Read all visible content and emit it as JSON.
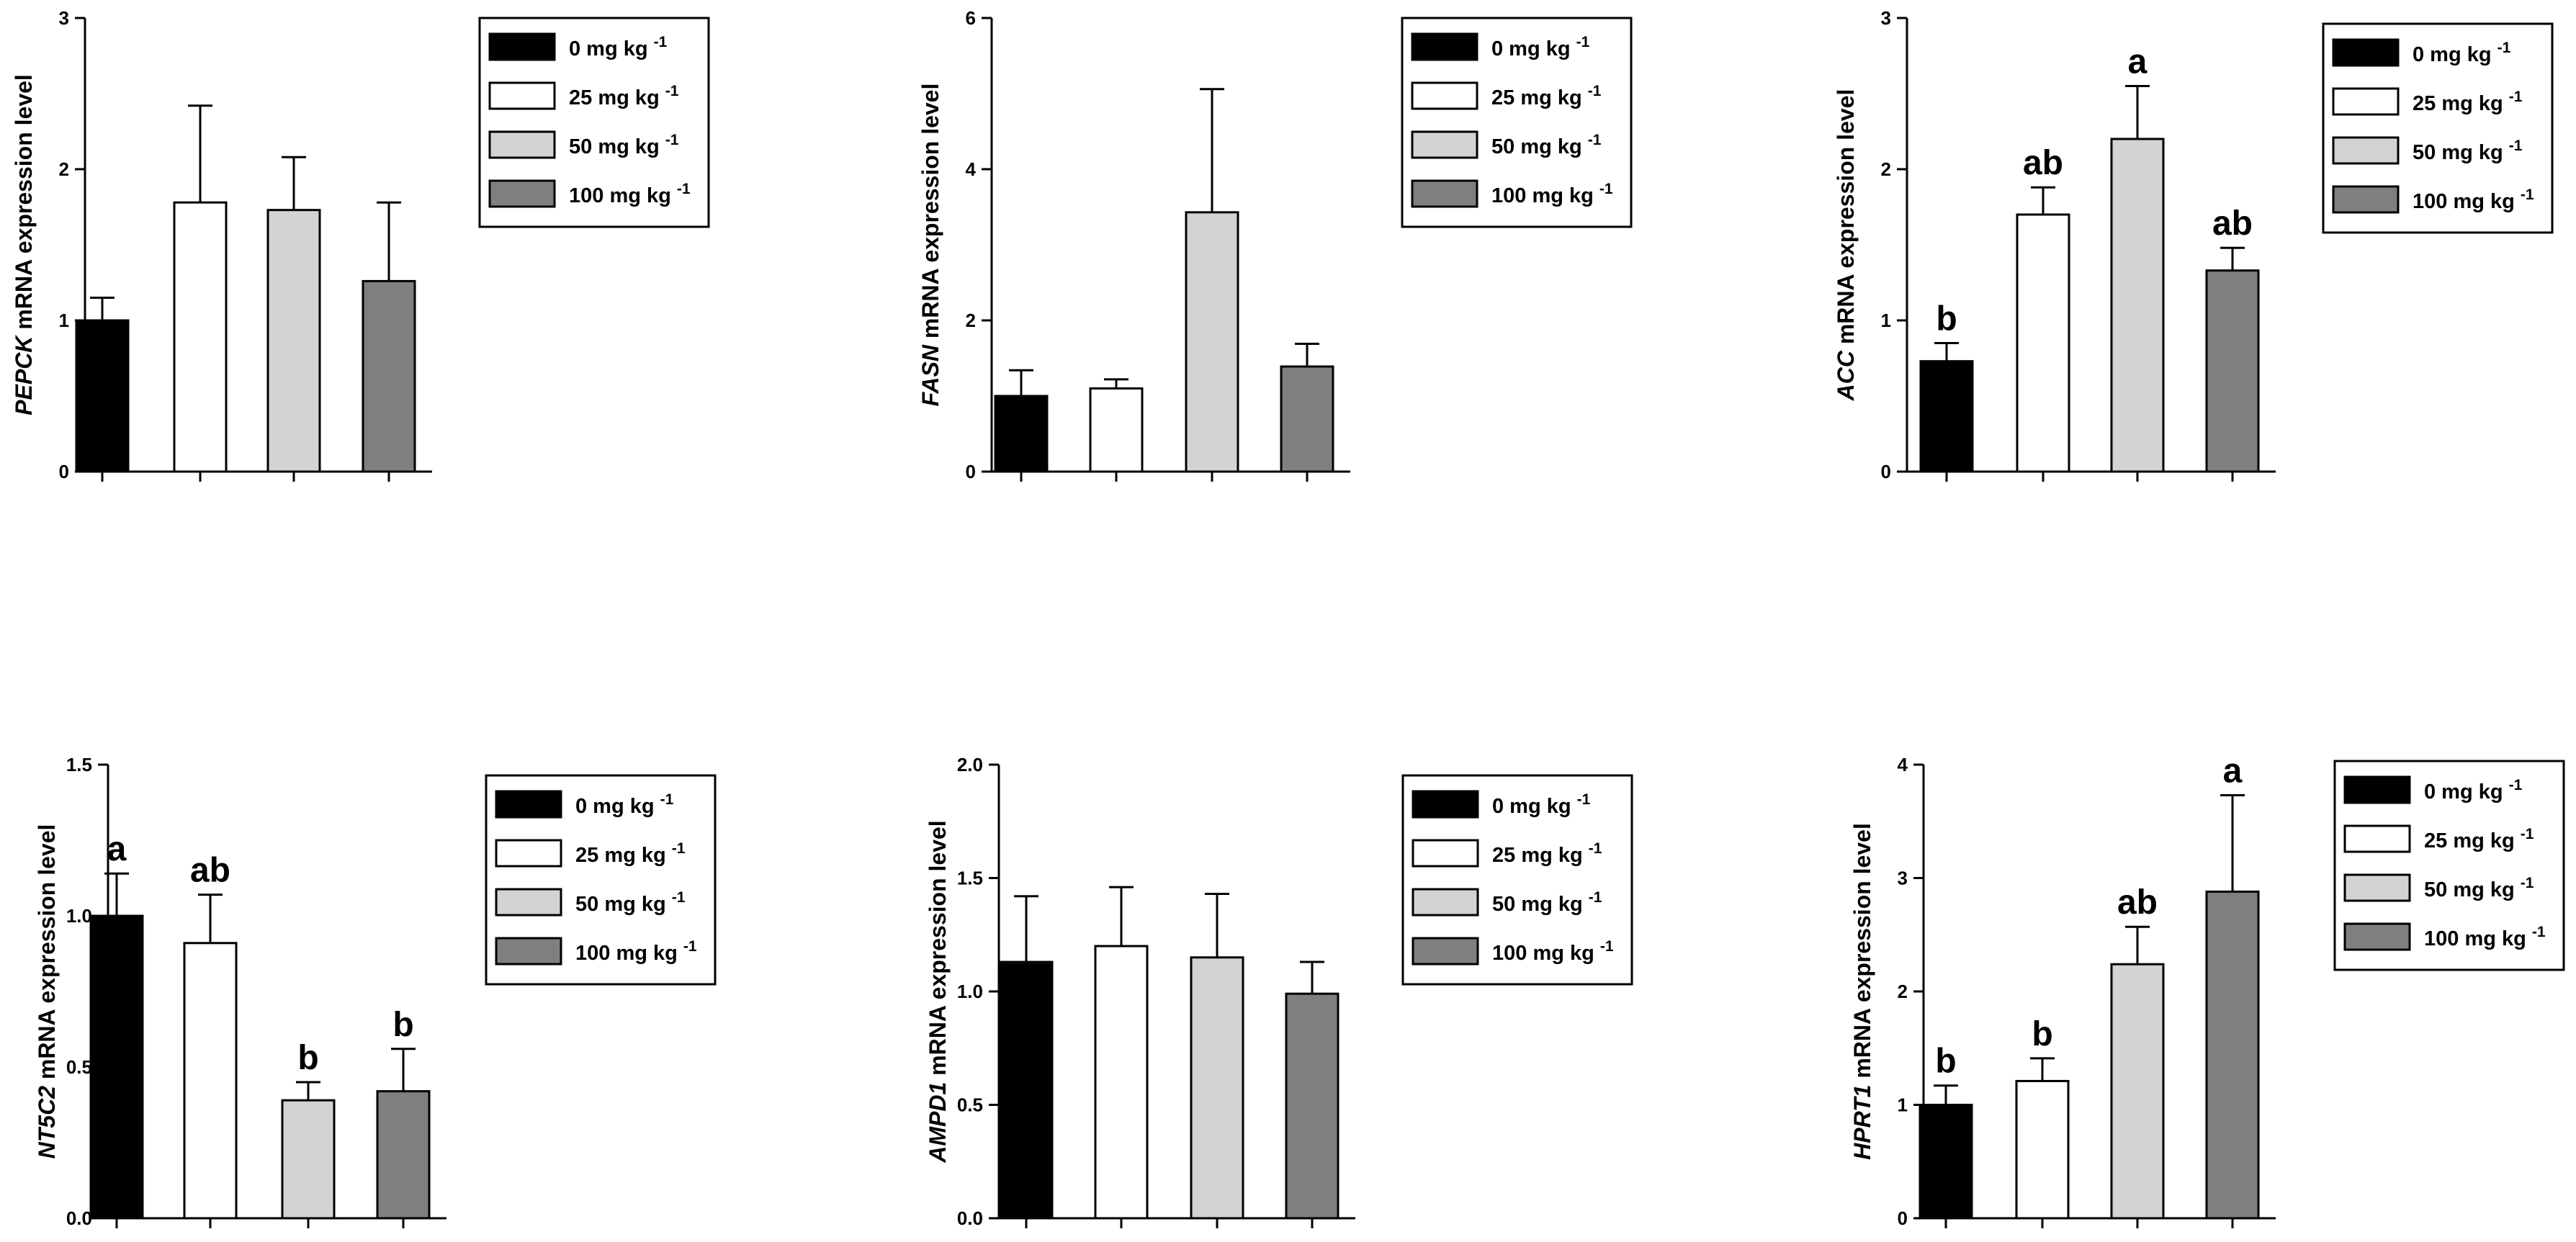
{
  "chart_data": [
    {
      "type": "bar",
      "gene": "PEPCK",
      "ylabel_suffix": " mRNA expression level",
      "ylim": [
        0,
        3
      ],
      "yticks": [
        "0",
        "1",
        "2",
        "3"
      ],
      "categories": [
        "0 mg kg -1",
        "25 mg kg -1",
        "50 mg kg -1",
        "100 mg kg -1"
      ],
      "values": [
        1.0,
        1.78,
        1.73,
        1.26
      ],
      "errors": [
        0.15,
        0.64,
        0.35,
        0.52
      ],
      "letters": [
        "",
        "",
        "",
        ""
      ],
      "legend": [
        {
          "main": "0 mg kg",
          "sup": "-1"
        },
        {
          "main": "25 mg kg",
          "sup": "-1"
        },
        {
          "main": "50 mg kg",
          "sup": "-1"
        },
        {
          "main": "100 mg kg",
          "sup": "-1"
        }
      ]
    },
    {
      "type": "bar",
      "gene": "FASN",
      "ylabel_suffix": " mRNA expression level",
      "ylim": [
        0,
        6
      ],
      "yticks": [
        "0",
        "2",
        "4",
        "6"
      ],
      "categories": [
        "0 mg kg -1",
        "25 mg kg -1",
        "50 mg kg -1",
        "100 mg kg -1"
      ],
      "values": [
        1.0,
        1.1,
        3.43,
        1.39
      ],
      "errors": [
        0.34,
        0.12,
        1.63,
        0.3
      ],
      "letters": [
        "",
        "",
        "",
        ""
      ],
      "legend": [
        {
          "main": "0 mg kg",
          "sup": "-1"
        },
        {
          "main": "25 mg kg",
          "sup": "-1"
        },
        {
          "main": "50 mg kg",
          "sup": "-1"
        },
        {
          "main": "100 mg kg",
          "sup": "-1"
        }
      ]
    },
    {
      "type": "bar",
      "gene": "ACC",
      "ylabel_suffix": " mRNA expression level",
      "ylim": [
        0,
        3
      ],
      "yticks": [
        "0",
        "1",
        "2",
        "3"
      ],
      "categories": [
        "0 mg kg -1",
        "25 mg kg -1",
        "50 mg kg -1",
        "100 mg kg -1"
      ],
      "values": [
        0.73,
        1.7,
        2.2,
        1.33
      ],
      "errors": [
        0.12,
        0.18,
        0.35,
        0.15
      ],
      "letters": [
        "b",
        "ab",
        "a",
        "ab"
      ],
      "legend": [
        {
          "main": "0 mg kg",
          "sup": "-1"
        },
        {
          "main": "25 mg kg",
          "sup": "-1"
        },
        {
          "main": "50 mg kg",
          "sup": "-1"
        },
        {
          "main": "100 mg kg",
          "sup": "-1"
        }
      ]
    },
    {
      "type": "bar",
      "gene": "NT5C2",
      "ylabel_suffix": " mRNA expression level",
      "ylim": [
        0,
        1.5
      ],
      "yticks": [
        "0.0",
        "0.5",
        "1.0",
        "1.5"
      ],
      "categories": [
        "0 mg kg -1",
        "25 mg kg -1",
        "50 mg kg -1",
        "100 mg kg -1"
      ],
      "values": [
        1.0,
        0.91,
        0.39,
        0.42
      ],
      "errors": [
        0.14,
        0.16,
        0.06,
        0.14
      ],
      "letters": [
        "a",
        "ab",
        "b",
        "b"
      ],
      "legend": [
        {
          "main": "0 mg kg",
          "sup": "-1"
        },
        {
          "main": "25 mg kg",
          "sup": "-1"
        },
        {
          "main": "50 mg kg",
          "sup": "-1"
        },
        {
          "main": "100 mg kg",
          "sup": "-1"
        }
      ]
    },
    {
      "type": "bar",
      "gene": "AMPD1",
      "ylabel_suffix": " mRNA expression level",
      "ylim": [
        0,
        2
      ],
      "yticks": [
        "0.0",
        "0.5",
        "1.0",
        "1.5",
        "2.0"
      ],
      "categories": [
        "0 mg kg -1",
        "25 mg kg -1",
        "50 mg kg -1",
        "100 mg kg -1"
      ],
      "values": [
        1.13,
        1.2,
        1.15,
        0.99
      ],
      "errors": [
        0.29,
        0.26,
        0.28,
        0.14
      ],
      "letters": [
        "",
        "",
        "",
        ""
      ],
      "legend": [
        {
          "main": "0 mg kg",
          "sup": "-1"
        },
        {
          "main": "25 mg kg",
          "sup": "-1"
        },
        {
          "main": "50 mg kg",
          "sup": "-1"
        },
        {
          "main": "100 mg kg",
          "sup": "-1"
        }
      ]
    },
    {
      "type": "bar",
      "gene": "HPRT1",
      "ylabel_suffix": " mRNA expression level",
      "ylim": [
        0,
        4
      ],
      "yticks": [
        "0",
        "1",
        "2",
        "3",
        "4"
      ],
      "categories": [
        "0 mg kg -1",
        "25 mg kg -1",
        "50 mg kg -1",
        "100 mg kg -1"
      ],
      "values": [
        1.0,
        1.21,
        2.24,
        2.88
      ],
      "errors": [
        0.17,
        0.2,
        0.33,
        0.85
      ],
      "letters": [
        "b",
        "b",
        "ab",
        "a"
      ],
      "legend": [
        {
          "main": "0 mg kg",
          "sup": "-1"
        },
        {
          "main": "25 mg kg",
          "sup": "-1"
        },
        {
          "main": "50 mg kg",
          "sup": "-1"
        },
        {
          "main": "100 mg kg",
          "sup": "-1"
        }
      ]
    }
  ],
  "colors": {
    "bar_fills": [
      "#000000",
      "#ffffff",
      "#d3d3d3",
      "#7f7f7f"
    ],
    "stroke": "#000000"
  }
}
